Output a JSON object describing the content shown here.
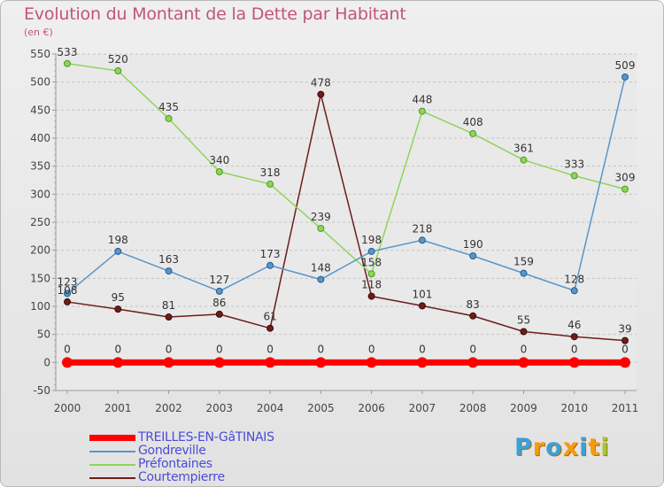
{
  "title": "Evolution du Montant de la Dette par Habitant",
  "subtitle": "(en €)",
  "logo": {
    "text": "Proxiti",
    "letters": [
      "P",
      "r",
      "o",
      "x",
      "i",
      "t",
      "i"
    ],
    "colors": [
      "#3aa0d8",
      "#f39c12",
      "#3aa0d8",
      "#f39c12",
      "#3aa0d8",
      "#f39c12",
      "#9bcb3b"
    ]
  },
  "chart_data": {
    "type": "line",
    "title": "Evolution du Montant de la Dette par Habitant",
    "ylabel": "(en €)",
    "xlabel": "",
    "x": [
      "2000",
      "2001",
      "2002",
      "2003",
      "2004",
      "2005",
      "2006",
      "2007",
      "2008",
      "2009",
      "2010",
      "2011"
    ],
    "ylim": [
      -50,
      550
    ],
    "yticks": [
      -50,
      0,
      50,
      100,
      150,
      200,
      250,
      300,
      350,
      400,
      450,
      500,
      550
    ],
    "grid": "horizontal-dashed",
    "legend": "bottom-left",
    "series": [
      {
        "name": "TREILLES-EN-GâTINAIS",
        "color": "#ff0000",
        "values": [
          0,
          0,
          0,
          0,
          0,
          0,
          0,
          0,
          0,
          0,
          0,
          0
        ]
      },
      {
        "name": "Gondreville",
        "color": "#5b95c8",
        "values": [
          123,
          198,
          163,
          127,
          173,
          148,
          198,
          218,
          190,
          159,
          128,
          509
        ]
      },
      {
        "name": "Préfontaines",
        "color": "#8fd45a",
        "values": [
          533,
          520,
          435,
          340,
          318,
          239,
          158,
          448,
          408,
          361,
          333,
          309
        ]
      },
      {
        "name": "Courtempierre",
        "color": "#6e1c1c",
        "values": [
          108,
          95,
          81,
          86,
          61,
          478,
          118,
          101,
          83,
          55,
          46,
          39
        ]
      }
    ]
  }
}
